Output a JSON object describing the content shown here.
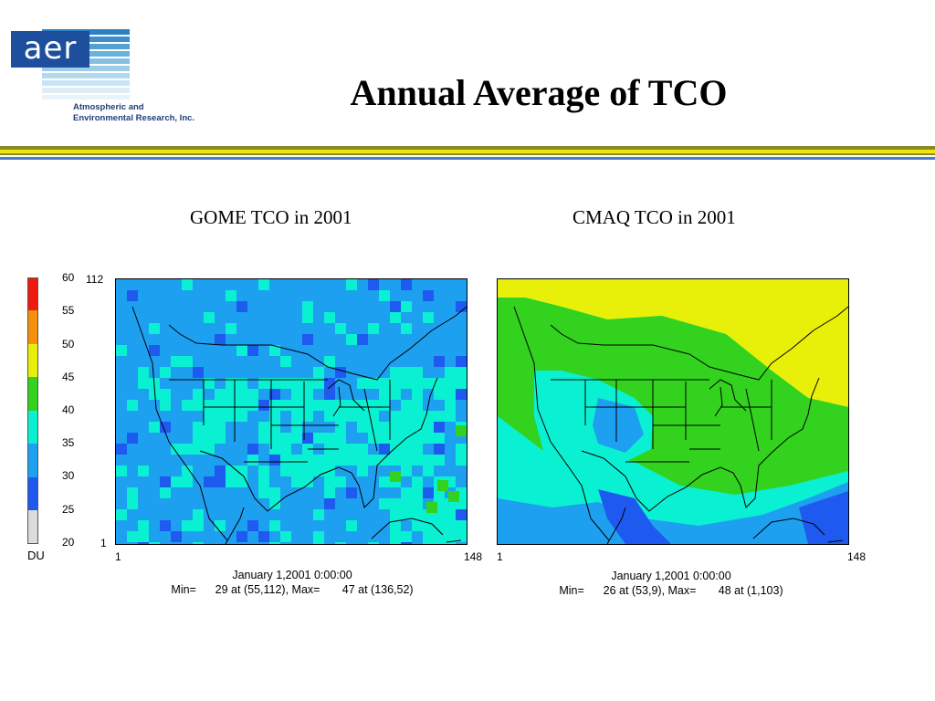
{
  "logo": {
    "text": "aer",
    "company_line1": "Atmospheric and",
    "company_line2": "Environmental Research, Inc."
  },
  "title": "Annual Average of TCO",
  "colors": {
    "rule_olive": "#8a8a2a",
    "rule_yellow": "#f0e60a",
    "rule_blue": "#4b7bc8"
  },
  "legend": {
    "unit": "DU",
    "ticks": [
      "60",
      "55",
      "50",
      "45",
      "40",
      "35",
      "30",
      "25",
      "20"
    ],
    "bins": [
      {
        "range": [
          55,
          60
        ],
        "color": "#ef1c0e"
      },
      {
        "range": [
          50,
          55
        ],
        "color": "#f5900a"
      },
      {
        "range": [
          45,
          50
        ],
        "color": "#e8f00a"
      },
      {
        "range": [
          40,
          45
        ],
        "color": "#32d21e"
      },
      {
        "range": [
          35,
          40
        ],
        "color": "#0af0d2"
      },
      {
        "range": [
          30,
          35
        ],
        "color": "#1ea0f0"
      },
      {
        "range": [
          25,
          30
        ],
        "color": "#1e5af0"
      },
      {
        "range": [
          20,
          25
        ],
        "color": "#dcdcdc"
      }
    ]
  },
  "panels": [
    {
      "title": "GOME TCO in 2001",
      "y_top": "112",
      "y_bottom": "1",
      "x_left": "1",
      "x_right": "148",
      "date": "January 1,2001 0:00:00",
      "stats": "Min=      29 at (55,112), Max=       47 at (136,52)"
    },
    {
      "title": "CMAQ TCO in 2001",
      "x_left": "1",
      "x_right": "148",
      "date": "January 1,2001 0:00:00",
      "stats": "Min=      26 at (53,9), Max=       48 at (1,103)"
    }
  ]
}
